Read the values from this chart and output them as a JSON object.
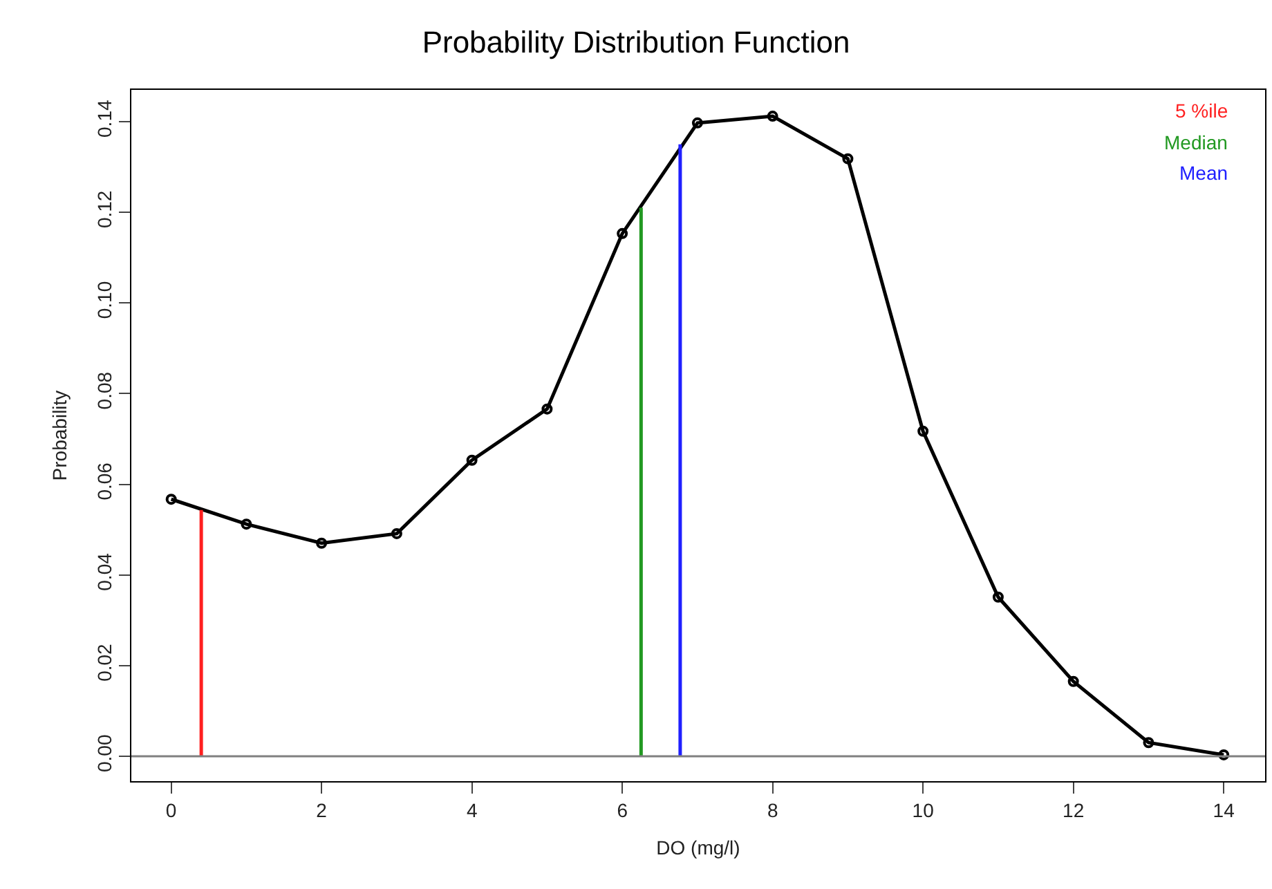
{
  "chart_data": {
    "type": "line",
    "title": "Probability Distribution Function",
    "xlabel": "DO (mg/l)",
    "ylabel": "Probability",
    "x": [
      0,
      1,
      2,
      3,
      4,
      5,
      6,
      7,
      8,
      9,
      10,
      11,
      12,
      13,
      14
    ],
    "series": [
      {
        "color": "#000000",
        "marker": "circle",
        "values": [
          0.0567,
          0.0512,
          0.047,
          0.0491,
          0.0653,
          0.0766,
          0.1153,
          0.1397,
          0.1412,
          0.1318,
          0.0717,
          0.0351,
          0.0165,
          0.003,
          0.0003
        ]
      },
      {
        "name": "5 %ile",
        "color": "#ff2020",
        "x": [
          0.4,
          0.4
        ],
        "values": [
          0,
          0.0543
        ],
        "marker": "none"
      },
      {
        "name": "Median",
        "color": "#229922",
        "x": [
          6.25,
          6.25
        ],
        "values": [
          0,
          0.121
        ],
        "marker": "none"
      },
      {
        "name": "Mean",
        "color": "#2020ff",
        "x": [
          6.77,
          6.77
        ],
        "values": [
          0,
          0.135
        ],
        "marker": "none"
      }
    ],
    "ref_lines": [
      {
        "axis": "y",
        "value": 0,
        "color": "#808080"
      }
    ],
    "xlim": [
      -0.53,
      14.55
    ],
    "ylim": [
      -0.0055,
      0.147
    ],
    "xticks": [
      0,
      2,
      4,
      6,
      8,
      10,
      12,
      14
    ],
    "yticks": [
      {
        "value": 0,
        "label": "0.00"
      },
      0.02,
      0.04,
      0.06,
      0.08,
      {
        "value": 0.1,
        "label": "0.10"
      },
      0.12,
      0.14
    ],
    "legend": "top right"
  }
}
